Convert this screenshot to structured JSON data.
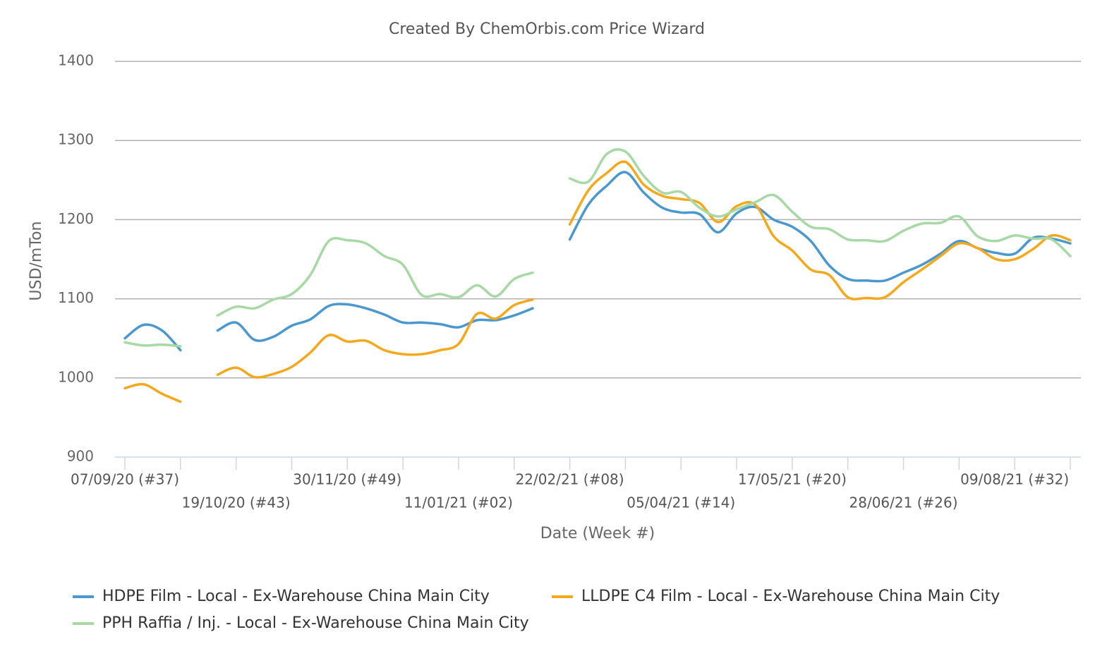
{
  "chart_data": {
    "type": "line",
    "title": "Created By ChemOrbis.com Price Wizard",
    "y_label": "USD/mTon",
    "x_label": "Date (Week #)",
    "categories": [
      "07/09/20 (#37)",
      null,
      null,
      null,
      null,
      null,
      "19/10/20 (#43)",
      null,
      null,
      null,
      null,
      null,
      "30/11/20 (#49)",
      null,
      null,
      null,
      null,
      null,
      "11/01/21 (#02)",
      null,
      null,
      null,
      null,
      null,
      "22/02/21 (#08)",
      null,
      null,
      null,
      null,
      null,
      "05/04/21 (#14)",
      null,
      null,
      null,
      null,
      null,
      "17/05/21 (#20)",
      null,
      null,
      null,
      null,
      null,
      "28/06/21 (#26)",
      null,
      null,
      null,
      null,
      null,
      "09/08/21 (#32)",
      null,
      null,
      null
    ],
    "ylim": [
      900,
      1400
    ],
    "yticks": [
      900,
      1000,
      1100,
      1200,
      1300,
      1400
    ],
    "grid": true,
    "series": [
      {
        "name": "HDPE Film - Local - Ex-Warehouse China Main City",
        "color": "#4a98d0",
        "values": [
          1050,
          1067,
          1060,
          1035,
          null,
          1060,
          1070,
          1048,
          1052,
          1066,
          1074,
          1091,
          1093,
          1088,
          1080,
          1070,
          1070,
          1068,
          1064,
          1073,
          1073,
          1079,
          1088,
          null,
          1175,
          1219,
          1243,
          1260,
          1234,
          1215,
          1209,
          1207,
          1184,
          1208,
          1216,
          1200,
          1191,
          1173,
          1142,
          1125,
          1123,
          1123,
          1133,
          1143,
          1157,
          1173,
          1164,
          1158,
          1157,
          1177,
          1176,
          1170
        ]
      },
      {
        "name": "LLDPE C4 Film - Local - Ex-Warehouse China Main City",
        "color": "#f6a81b",
        "values": [
          987,
          992,
          980,
          970,
          null,
          1004,
          1013,
          1001,
          1005,
          1014,
          1032,
          1054,
          1046,
          1047,
          1035,
          1030,
          1030,
          1035,
          1043,
          1081,
          1075,
          1092,
          1099,
          null,
          1194,
          1237,
          1259,
          1273,
          1244,
          1230,
          1226,
          1221,
          1197,
          1217,
          1219,
          1179,
          1161,
          1137,
          1130,
          1102,
          1101,
          1102,
          1121,
          1137,
          1154,
          1170,
          1164,
          1150,
          1150,
          1163,
          1180,
          1174
        ]
      },
      {
        "name": "PPH Raffia / Inj. - Local - Ex-Warehouse China Main City",
        "color": "#a6d9a4",
        "values": [
          1045,
          1041,
          1042,
          1040,
          null,
          1079,
          1090,
          1088,
          1099,
          1106,
          1130,
          1173,
          1174,
          1170,
          1154,
          1143,
          1105,
          1106,
          1102,
          1117,
          1103,
          1125,
          1133,
          null,
          1252,
          1248,
          1283,
          1286,
          1255,
          1234,
          1235,
          1215,
          1204,
          1213,
          1222,
          1231,
          1210,
          1191,
          1188,
          1175,
          1174,
          1173,
          1186,
          1195,
          1196,
          1204,
          1179,
          1173,
          1180,
          1176,
          1175,
          1154
        ]
      }
    ]
  }
}
